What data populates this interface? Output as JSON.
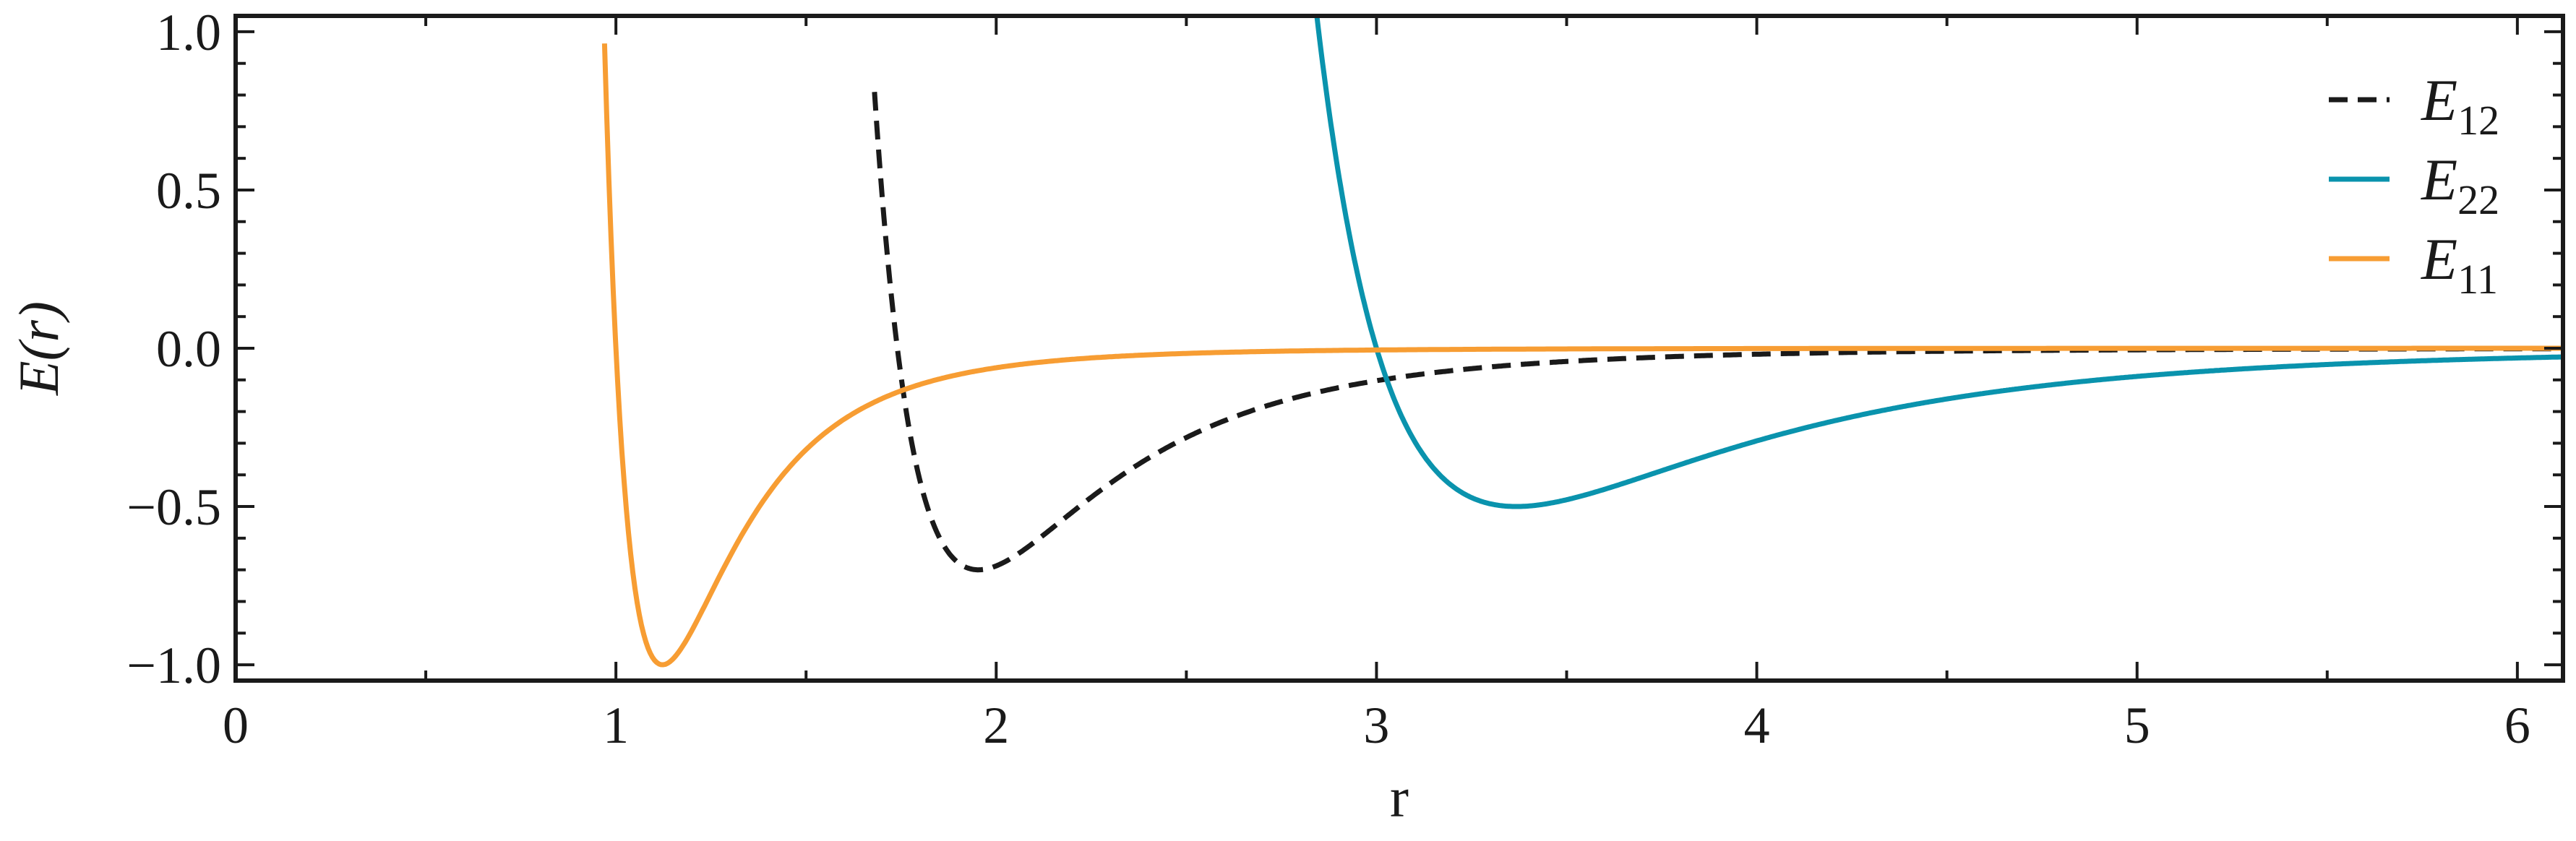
{
  "chart_data": {
    "type": "line",
    "title": "",
    "xlabel": "r",
    "ylabel": "E(r)",
    "xlim": [
      0,
      6.12
    ],
    "ylim": [
      -1.05,
      1.05
    ],
    "x_ticks": [
      0,
      1,
      2,
      3,
      4,
      5,
      6
    ],
    "x_tick_labels": [
      "0",
      "1",
      "2",
      "3",
      "4",
      "5",
      "6"
    ],
    "y_ticks": [
      -1.0,
      -0.5,
      0.0,
      0.5,
      1.0
    ],
    "y_tick_labels": [
      "−1.0",
      "−0.5",
      "0.0",
      "0.5",
      "1.0"
    ],
    "grid": false,
    "legend_position": "top-right",
    "series": [
      {
        "name": "E12",
        "legend_base": "E",
        "legend_sub": "12",
        "color": "#1a1a1a",
        "dash": "dashed",
        "epsilon": 0.7,
        "sigma": 1.74,
        "r_min": 1.953,
        "x": [
          1.68,
          1.7,
          1.74,
          1.8,
          1.9,
          1.953,
          2.0,
          2.2,
          2.5,
          3.0,
          3.5,
          4.0,
          5.0,
          6.12
        ],
        "y": [
          1.04,
          0.8,
          0.0,
          -0.35,
          -0.67,
          -0.7,
          -0.69,
          -0.52,
          -0.3,
          -0.11,
          -0.05,
          -0.026,
          -0.008,
          -0.003
        ]
      },
      {
        "name": "E22",
        "legend_base": "E",
        "legend_sub": "22",
        "color": "#0a93ad",
        "dash": "solid",
        "epsilon": 0.5,
        "sigma": 3.0,
        "r_min": 3.367,
        "x": [
          2.84,
          2.9,
          3.0,
          3.1,
          3.2,
          3.367,
          3.5,
          4.0,
          4.5,
          5.0,
          5.5,
          6.12
        ],
        "y": [
          1.04,
          0.6,
          0.0,
          -0.28,
          -0.43,
          -0.5,
          -0.48,
          -0.3,
          -0.16,
          -0.09,
          -0.055,
          -0.025
        ]
      },
      {
        "name": "E11",
        "legend_base": "E",
        "legend_sub": "11",
        "color": "#f79d33",
        "dash": "solid",
        "epsilon": 1.0,
        "sigma": 1.0,
        "r_min": 1.122,
        "x": [
          0.97,
          1.0,
          1.05,
          1.122,
          1.2,
          1.3,
          1.5,
          1.74,
          2.0,
          2.5,
          3.0,
          4.0,
          6.12
        ],
        "y": [
          1.04,
          0.0,
          -0.68,
          -1.0,
          -0.88,
          -0.62,
          -0.32,
          -0.13,
          -0.06,
          -0.016,
          -0.005,
          -0.001,
          0.0
        ]
      }
    ]
  }
}
